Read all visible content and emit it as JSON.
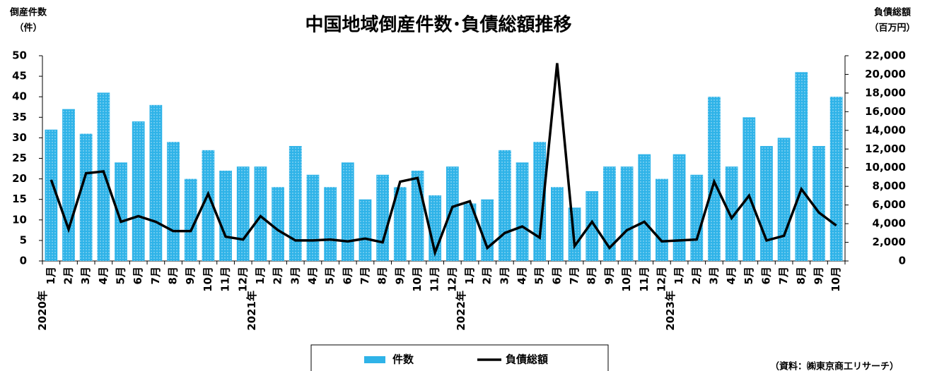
{
  "chart_data": {
    "type": "bar_line",
    "title": "中国地域倒産件数･負債総額推移",
    "y_axis_label": [
      "倒産件数",
      "（件）"
    ],
    "y2_axis_label": [
      "負債総額",
      "（百万円）"
    ],
    "source": "（資料：㈱東京商工リサーチ）",
    "categories": [
      "1月",
      "2月",
      "3月",
      "4月",
      "5月",
      "6月",
      "7月",
      "8月",
      "9月",
      "10月",
      "11月",
      "12月",
      "1月",
      "2月",
      "3月",
      "4月",
      "5月",
      "6月",
      "7月",
      "8月",
      "9月",
      "10月",
      "11月",
      "12月",
      "1月",
      "2月",
      "3月",
      "4月",
      "5月",
      "6月",
      "7月",
      "8月",
      "9月",
      "10月",
      "11月",
      "12月",
      "1月",
      "2月",
      "3月",
      "4月",
      "5月",
      "6月",
      "7月",
      "8月",
      "9月",
      "10月"
    ],
    "year_labels": [
      "2020年",
      null,
      null,
      null,
      null,
      null,
      null,
      null,
      null,
      null,
      null,
      null,
      "2021年",
      null,
      null,
      null,
      null,
      null,
      null,
      null,
      null,
      null,
      null,
      null,
      "2022年",
      null,
      null,
      null,
      null,
      null,
      null,
      null,
      null,
      null,
      null,
      null,
      "2023年",
      null,
      null,
      null,
      null,
      null,
      null,
      null,
      null,
      null
    ],
    "series": [
      {
        "name": "件数",
        "kind": "bar",
        "color": "#2fb3e8",
        "values": [
          32,
          37,
          31,
          41,
          24,
          34,
          38,
          29,
          20,
          27,
          22,
          23,
          23,
          18,
          28,
          21,
          18,
          24,
          15,
          21,
          18,
          22,
          16,
          23,
          14,
          15,
          27,
          24,
          29,
          18,
          13,
          17,
          23,
          23,
          26,
          20,
          26,
          21,
          40,
          23,
          35,
          28,
          30,
          46,
          28,
          40
        ]
      },
      {
        "name": "負債総額",
        "kind": "line",
        "color": "#000000",
        "axis": "y2",
        "values": [
          8700,
          3400,
          9400,
          9600,
          4200,
          4800,
          4200,
          3200,
          3200,
          7200,
          2600,
          2300,
          4800,
          3300,
          2200,
          2200,
          2300,
          2100,
          2400,
          2000,
          8500,
          8900,
          900,
          5800,
          6400,
          1400,
          3000,
          3700,
          2500,
          21200,
          1600,
          4200,
          1400,
          3300,
          4200,
          2100,
          2200,
          2300,
          8500,
          4600,
          7000,
          2200,
          2700,
          7700,
          5200,
          3800
        ]
      }
    ],
    "ylim": [
      0,
      50
    ],
    "yticks": [
      0,
      5,
      10,
      15,
      20,
      25,
      30,
      35,
      40,
      45,
      50
    ],
    "y2lim": [
      0,
      22000
    ],
    "y2ticks": [
      {
        "value": 0,
        "label": "0"
      },
      {
        "value": 2000,
        "label": "2,000"
      },
      {
        "value": 4000,
        "label": "4,000"
      },
      {
        "value": 6000,
        "label": "6,000"
      },
      {
        "value": 8000,
        "label": "8,000"
      },
      {
        "value": 10000,
        "label": "10,000"
      },
      {
        "value": 12000,
        "label": "12,000"
      },
      {
        "value": 14000,
        "label": "14,000"
      },
      {
        "value": 16000,
        "label": "16,000"
      },
      {
        "value": 18000,
        "label": "18,000"
      },
      {
        "value": 20000,
        "label": "20,000"
      },
      {
        "value": 22000,
        "label": "22,000"
      }
    ]
  }
}
